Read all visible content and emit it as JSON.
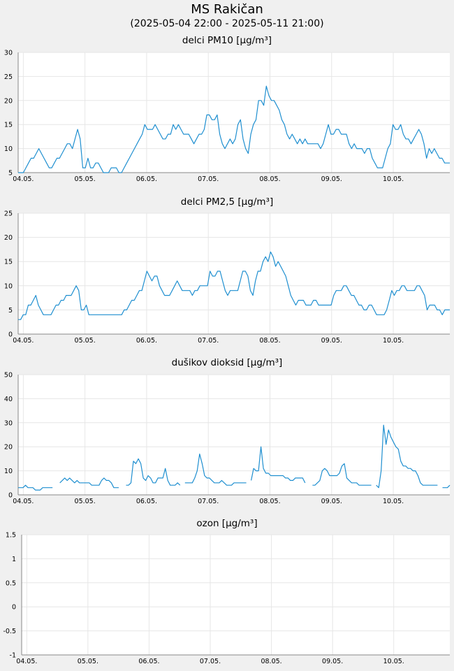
{
  "header": {
    "title": "MS Rakičan",
    "subtitle": "(2025-05-04 22:00 - 2025-05-11 21:00)"
  },
  "colors": {
    "series": "#1f8fd0",
    "plot_bg": "#ffffff",
    "grid": "#e6e6e6",
    "page_bg": "#f0f0f0"
  },
  "chart_data": [
    {
      "type": "line",
      "title": "delci PM10 [µg/m³]",
      "x_tick_labels": [
        "04.05.",
        "05.05.",
        "06.05.",
        "07.05.",
        "08.05.",
        "09.05.",
        "10.05."
      ],
      "y_ticks": [
        "5",
        "10",
        "15",
        "20",
        "25",
        "30"
      ],
      "ylim": [
        5,
        30
      ],
      "grid": true,
      "series": [
        {
          "x_unit": "hours since 2025-05-04 22:00",
          "values": [
            5,
            5,
            5,
            6,
            7,
            8,
            8,
            9,
            10,
            9,
            8,
            7,
            6,
            6,
            7,
            8,
            8,
            9,
            10,
            11,
            11,
            10,
            12,
            14,
            12,
            6,
            6,
            8,
            6,
            6,
            7,
            7,
            6,
            5,
            5,
            5,
            6,
            6,
            6,
            5,
            5,
            6,
            7,
            8,
            9,
            10,
            11,
            12,
            13,
            15,
            14,
            14,
            14,
            15,
            14,
            13,
            12,
            12,
            13,
            13,
            15,
            14,
            15,
            14,
            13,
            13,
            13,
            12,
            11,
            12,
            13,
            13,
            14,
            17,
            17,
            16,
            16,
            17,
            13,
            11,
            10,
            11,
            12,
            11,
            12,
            15,
            16,
            12,
            10,
            9,
            13,
            15,
            16,
            20,
            20,
            19,
            23,
            21,
            20,
            20,
            19,
            18,
            16,
            15,
            13,
            12,
            13,
            12,
            11,
            12,
            11,
            12,
            11,
            11,
            11,
            11,
            11,
            10,
            11,
            13,
            15,
            13,
            13,
            14,
            14,
            13,
            13,
            13,
            11,
            10,
            11,
            10,
            10,
            10,
            9,
            10,
            10,
            8,
            7,
            6,
            6,
            6,
            8,
            10,
            11,
            15,
            14,
            14,
            15,
            13,
            12,
            12,
            11,
            12,
            13,
            14,
            13,
            11,
            8,
            10,
            9,
            10,
            9,
            8,
            8,
            7,
            7,
            7
          ]
        }
      ]
    },
    {
      "type": "line",
      "title": "delci PM2,5 [µg/m³]",
      "x_tick_labels": [
        "04.05.",
        "05.05.",
        "06.05.",
        "07.05.",
        "08.05.",
        "09.05.",
        "10.05."
      ],
      "y_ticks": [
        "0",
        "5",
        "10",
        "15",
        "20",
        "25"
      ],
      "ylim": [
        0,
        25
      ],
      "grid": true,
      "series": [
        {
          "x_unit": "hours since 2025-05-04 22:00",
          "values": [
            3,
            3,
            4,
            4,
            6,
            6,
            7,
            8,
            6,
            5,
            4,
            4,
            4,
            4,
            5,
            6,
            6,
            7,
            7,
            8,
            8,
            8,
            9,
            10,
            9,
            5,
            5,
            6,
            4,
            4,
            4,
            4,
            4,
            4,
            4,
            4,
            4,
            4,
            4,
            4,
            4,
            4,
            5,
            5,
            6,
            7,
            7,
            8,
            9,
            9,
            11,
            13,
            12,
            11,
            12,
            12,
            10,
            9,
            8,
            8,
            8,
            9,
            10,
            11,
            10,
            9,
            9,
            9,
            9,
            8,
            9,
            9,
            10,
            10,
            10,
            10,
            13,
            12,
            12,
            13,
            13,
            11,
            9,
            8,
            9,
            9,
            9,
            9,
            11,
            13,
            13,
            12,
            9,
            8,
            11,
            13,
            13,
            15,
            16,
            15,
            17,
            16,
            14,
            15,
            14,
            13,
            12,
            10,
            8,
            7,
            6,
            7,
            7,
            7,
            6,
            6,
            6,
            7,
            7,
            6,
            6,
            6,
            6,
            6,
            6,
            8,
            9,
            9,
            9,
            10,
            10,
            9,
            8,
            8,
            7,
            6,
            6,
            5,
            5,
            6,
            6,
            5,
            4,
            4,
            4,
            4,
            5,
            7,
            9,
            8,
            9,
            9,
            10,
            10,
            9,
            9,
            9,
            9,
            10,
            10,
            9,
            8,
            5,
            6,
            6,
            6,
            5,
            5,
            4,
            5,
            5,
            5
          ]
        }
      ]
    },
    {
      "type": "line",
      "title": "dušikov dioksid [µg/m³]",
      "x_tick_labels": [
        "04.05.",
        "05.05.",
        "06.05.",
        "07.05.",
        "08.05.",
        "09.05.",
        "10.05."
      ],
      "y_ticks": [
        "0",
        "10",
        "20",
        "30",
        "40",
        "50"
      ],
      "ylim": [
        0,
        50
      ],
      "grid": true,
      "series": [
        {
          "x_unit": "hours since 2025-05-04 22:00",
          "values": [
            3,
            3,
            3,
            4,
            3,
            3,
            3,
            2,
            2,
            2,
            3,
            3,
            3,
            3,
            3,
            null,
            null,
            5,
            6,
            7,
            6,
            7,
            6,
            5,
            6,
            5,
            5,
            5,
            5,
            5,
            4,
            4,
            4,
            4,
            6,
            7,
            6,
            6,
            5,
            3,
            3,
            3,
            null,
            null,
            4,
            4,
            5,
            14,
            13,
            15,
            13,
            7,
            6,
            8,
            7,
            5,
            5,
            7,
            7,
            7,
            11,
            6,
            4,
            4,
            4,
            5,
            4,
            null,
            5,
            5,
            5,
            5,
            7,
            10,
            17,
            13,
            8,
            7,
            7,
            6,
            5,
            5,
            5,
            6,
            5,
            4,
            4,
            4,
            5,
            5,
            5,
            5,
            5,
            5,
            null,
            6,
            11,
            10,
            10,
            20,
            11,
            9,
            9,
            8,
            8,
            8,
            8,
            8,
            8,
            7,
            7,
            6,
            6,
            7,
            7,
            7,
            7,
            5,
            null,
            null,
            4,
            4,
            5,
            6,
            10,
            11,
            10,
            8,
            8,
            8,
            8,
            9,
            12,
            13,
            7,
            6,
            5,
            5,
            5,
            4,
            4,
            4,
            4,
            4,
            4,
            null,
            4,
            3,
            10,
            29,
            21,
            27,
            24,
            22,
            20,
            19,
            14,
            12,
            12,
            11,
            11,
            10,
            10,
            8,
            5,
            4,
            4,
            4,
            4,
            4,
            4,
            4,
            null,
            3,
            3,
            3,
            4
          ]
        }
      ]
    },
    {
      "type": "line",
      "title": "ozon [µg/m³]",
      "x_tick_labels": [
        "04.05.",
        "05.05.",
        "06.05.",
        "07.05.",
        "08.05.",
        "09.05.",
        "10.05."
      ],
      "y_ticks": [
        "-1",
        "-0.5",
        "0",
        "0.5",
        "1",
        "1.5"
      ],
      "ylim": [
        -1,
        1.5
      ],
      "grid": true,
      "series": [
        {
          "values": []
        }
      ]
    }
  ]
}
